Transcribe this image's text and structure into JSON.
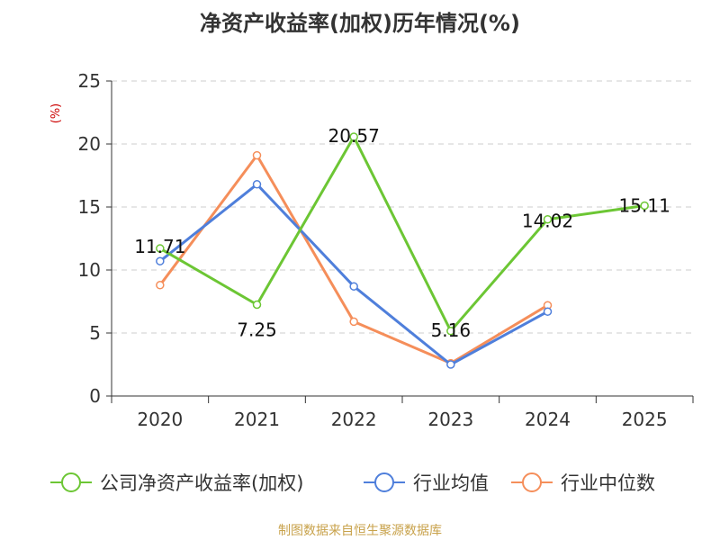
{
  "chart_data": {
    "type": "line",
    "title": "净资产收益率(加权)历年情况(%)",
    "ylabel": "(%)",
    "xlabel": "",
    "categories": [
      "2020",
      "2021",
      "2022",
      "2023",
      "2024",
      "2025"
    ],
    "ylim": [
      0,
      25
    ],
    "yticks": [
      0,
      5,
      10,
      15,
      20,
      25
    ],
    "grid": true,
    "legend_position": "bottom",
    "series": [
      {
        "name": "公司净资产收益率(加权)",
        "color": "#6CC634",
        "values": [
          11.71,
          7.25,
          20.57,
          5.16,
          14.02,
          15.11
        ],
        "labels": [
          "11.71",
          "7.25",
          "20.57",
          "5.16",
          "14.02",
          "15.11"
        ]
      },
      {
        "name": "行业均值",
        "color": "#4F7FDB",
        "values": [
          10.7,
          16.8,
          8.7,
          2.5,
          6.7,
          null
        ]
      },
      {
        "name": "行业中位数",
        "color": "#F58E5A",
        "values": [
          8.8,
          19.1,
          5.9,
          2.6,
          7.2,
          null
        ]
      }
    ]
  },
  "source": "制图数据来自恒生聚源数据库",
  "colors": {
    "title": "#333333",
    "ylabel": "#cc0000",
    "source": "#c8a24b",
    "axis": "#333333",
    "grid": "#cccccc"
  }
}
